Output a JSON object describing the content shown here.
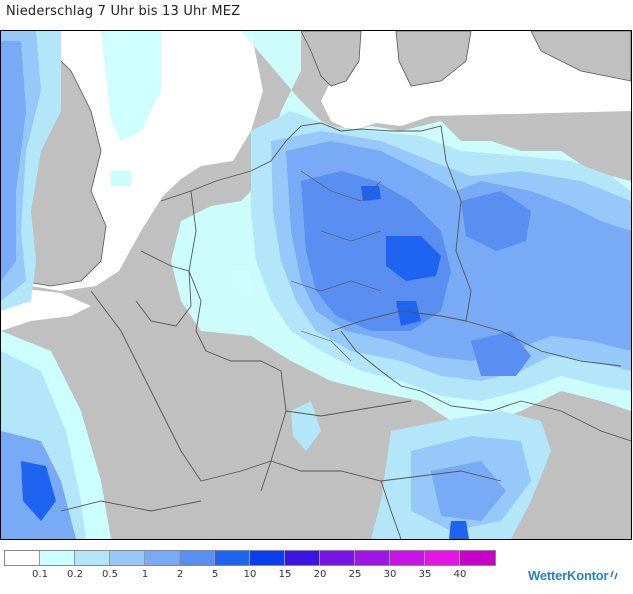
{
  "title": "Niederschlag 7 Uhr bis 13 Uhr MEZ",
  "legend": {
    "colors": [
      "#ffffff",
      "#ccffff",
      "#b4e6fa",
      "#96c8fa",
      "#78aaf5",
      "#5a8ef0",
      "#1e64f0",
      "#0a3cf0",
      "#3c14e6",
      "#7814e6",
      "#a014e6",
      "#c814e6",
      "#e614e6",
      "#c800c8"
    ],
    "labels": [
      "0.1",
      "0.2",
      "0.5",
      "1",
      "2",
      "5",
      "10",
      "15",
      "20",
      "25",
      "30",
      "35",
      "40"
    ]
  },
  "brand": {
    "name": "WetterKontor"
  },
  "map": {
    "region": "Central Europe",
    "colors": {
      "land": "#c0c0c0",
      "sea": "#ffffff",
      "border": "#555555"
    }
  }
}
